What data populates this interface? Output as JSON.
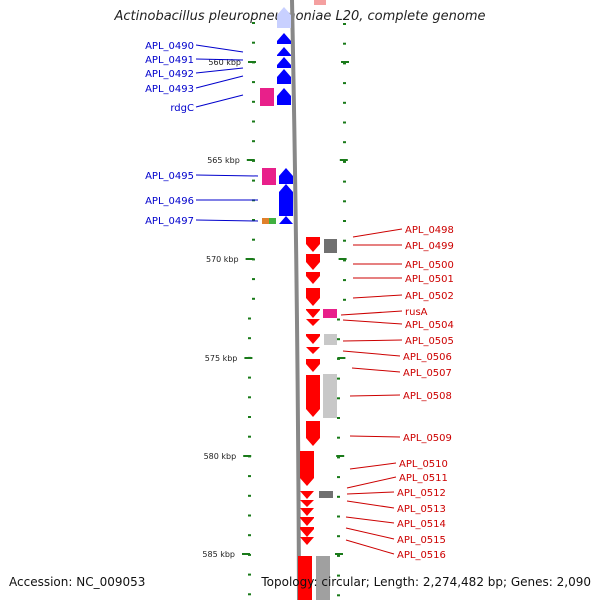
{
  "header": {
    "title": "Actinobacillus pleuropneumoniae L20, complete genome"
  },
  "footer": {
    "accession": "Accession: NC_009053",
    "topology": "Topology: circular; Length: 2,274,482 bp; Genes: 2,090"
  },
  "scale": {
    "ticks": [
      "560 kbp",
      "565 kbp",
      "570 kbp",
      "575 kbp",
      "580 kbp",
      "585 kbp"
    ]
  },
  "colors": {
    "reverse_strand_label": "#0000cc",
    "forward_strand_label": "#cc0000",
    "reverse_gene": "#0000ff",
    "forward_gene": "#ff0000",
    "tick": "#1a7a1a",
    "backbone": "#888888"
  },
  "genes": {
    "left": [
      "APL_0490",
      "APL_0491",
      "APL_0492",
      "APL_0493",
      "rdgC",
      "APL_0495",
      "APL_0496",
      "APL_0497"
    ],
    "right": [
      "APL_0498",
      "APL_0499",
      "APL_0500",
      "APL_0501",
      "APL_0502",
      "rusA",
      "APL_0504",
      "APL_0505",
      "APL_0506",
      "APL_0507",
      "APL_0508",
      "APL_0509",
      "APL_0510",
      "APL_0511",
      "APL_0512",
      "APL_0513",
      "APL_0514",
      "APL_0515",
      "APL_0516"
    ]
  }
}
